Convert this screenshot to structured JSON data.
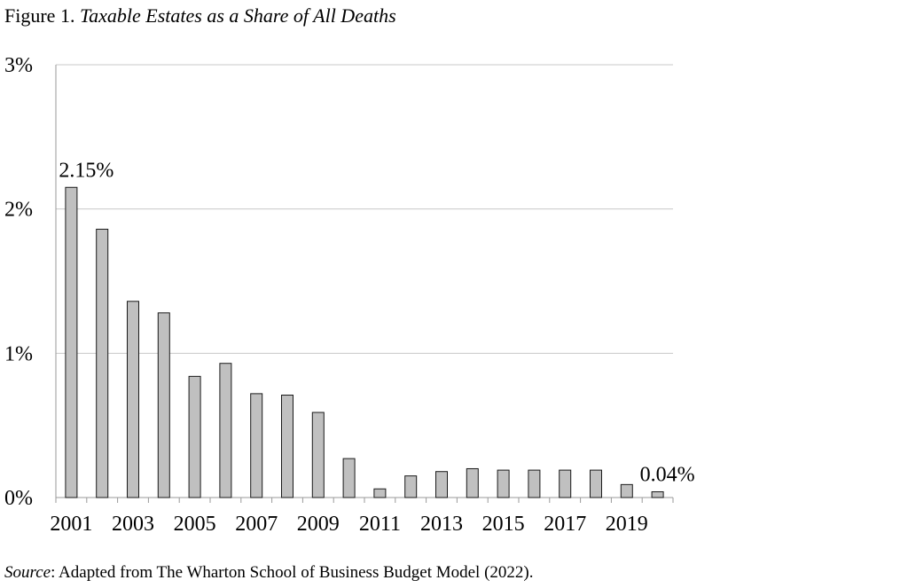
{
  "figure": {
    "label": "Figure 1.",
    "title": "Taxable Estates as a Share of All Deaths"
  },
  "source": {
    "label": "Source",
    "text": ": Adapted from The Wharton School of Business Budget Model (2022)."
  },
  "chart_data": {
    "type": "bar",
    "title": "Taxable Estates as a Share of All Deaths",
    "xlabel": "",
    "ylabel": "",
    "ylim": [
      0,
      3
    ],
    "yticks": [
      0,
      1,
      2,
      3
    ],
    "ytick_labels": [
      "0%",
      "1%",
      "2%",
      "3%"
    ],
    "grid": true,
    "legend": "none",
    "categories": [
      "2001",
      "2002",
      "2003",
      "2004",
      "2005",
      "2006",
      "2007",
      "2008",
      "2009",
      "2010",
      "2011",
      "2012",
      "2013",
      "2014",
      "2015",
      "2016",
      "2017",
      "2018",
      "2019",
      "2020"
    ],
    "xtick_labels": [
      "2001",
      "2003",
      "2005",
      "2007",
      "2009",
      "2011",
      "2013",
      "2015",
      "2017",
      "2019"
    ],
    "series": [
      {
        "name": "Taxable estates as a share of all deaths (%)",
        "values": [
          2.15,
          1.86,
          1.36,
          1.28,
          0.84,
          0.93,
          0.72,
          0.71,
          0.59,
          0.27,
          0.06,
          0.15,
          0.18,
          0.2,
          0.19,
          0.19,
          0.19,
          0.19,
          0.09,
          0.04
        ]
      }
    ],
    "annotations": [
      {
        "category": "2001",
        "text": "2.15%"
      },
      {
        "category": "2020",
        "text": "0.04%"
      }
    ],
    "colors": {
      "bar_fill": "#c0c0c0",
      "bar_stroke": "#1a1a1a",
      "grid": "#c8c8c8",
      "axis": "#9a9a9a"
    }
  }
}
